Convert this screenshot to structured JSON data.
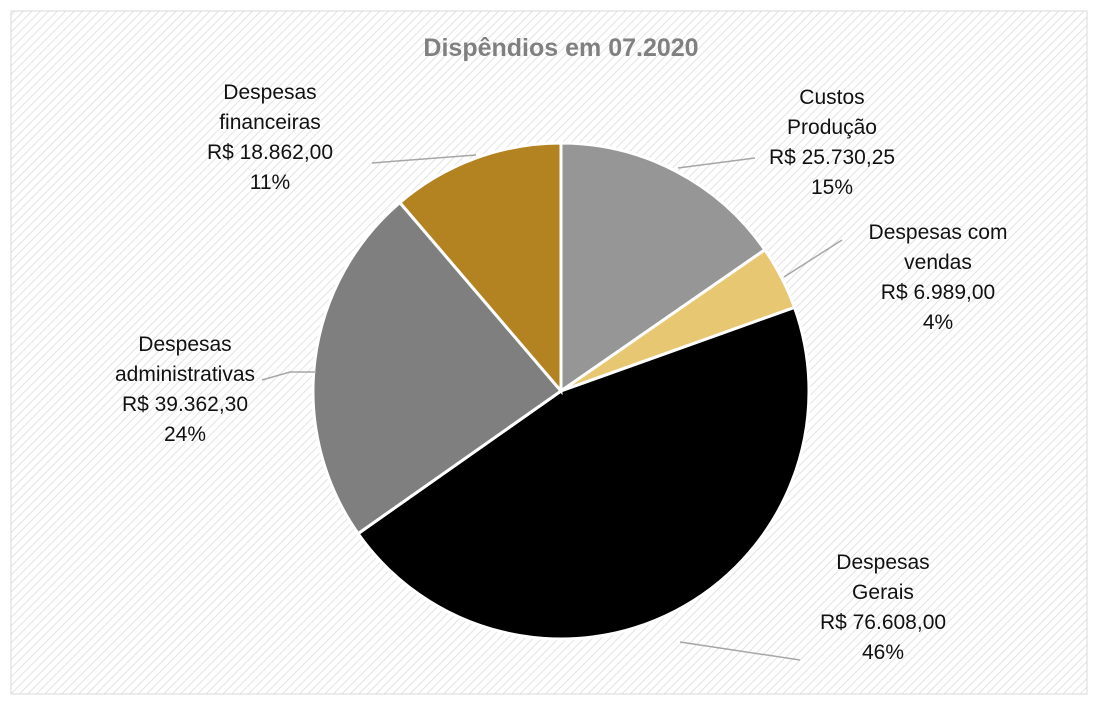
{
  "chart_data": {
    "type": "pie",
    "title": "Dispêndios em 07.2020",
    "categories": [
      "Custos Produção",
      "Despesas com vendas",
      "Despesas Gerais",
      "Despesas administrativas",
      "Despesas financeiras"
    ],
    "values": [
      25730.25,
      6989.0,
      76608.0,
      39362.3,
      18862.0
    ],
    "value_labels": [
      "R$ 25.730,25",
      "R$ 6.989,00",
      "R$ 76.608,00",
      "R$ 39.362,30",
      "R$ 18.862,00"
    ],
    "percent_labels": [
      "15%",
      "4%",
      "46%",
      "24%",
      "11%"
    ],
    "colors": [
      "#969696",
      "#e8c772",
      "#000000",
      "#7f7f7f",
      "#b38322"
    ]
  }
}
